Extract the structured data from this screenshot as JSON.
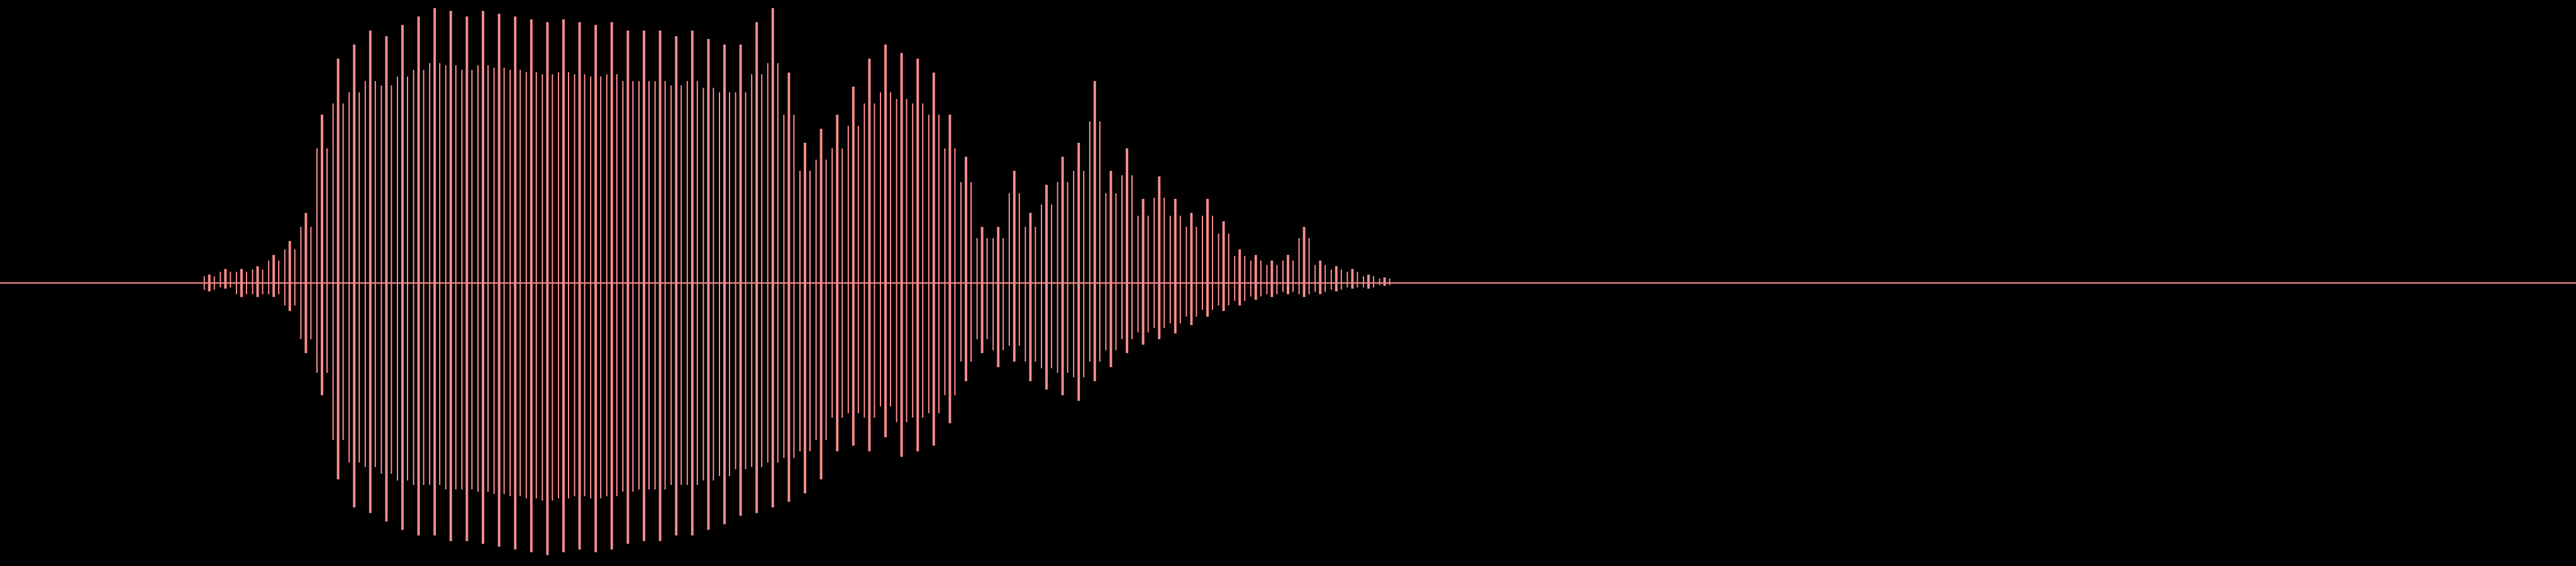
{
  "chart_data": {
    "type": "waveform",
    "x": [
      13,
      14,
      15,
      16,
      17,
      18,
      19,
      20,
      21,
      22,
      23,
      24,
      25,
      26,
      27,
      28,
      29,
      30,
      31,
      32,
      33,
      34,
      35,
      36,
      37,
      38,
      39,
      40,
      41,
      42,
      43,
      44,
      45,
      46,
      47,
      48,
      49,
      50,
      51,
      52,
      53,
      54,
      55,
      56,
      57,
      58,
      59,
      60,
      61,
      62,
      63,
      64,
      65,
      66,
      67,
      68,
      69,
      70,
      71,
      72,
      73,
      74,
      75,
      76,
      77,
      78,
      79,
      80,
      81,
      82,
      83,
      84,
      85,
      86
    ],
    "xlim": [
      0,
      160
    ],
    "ylim": [
      -1,
      1
    ],
    "series": [
      {
        "color": "#f68a8a",
        "values": [
          0.03,
          0.05,
          0.05,
          0.06,
          0.1,
          0.15,
          0.25,
          0.6,
          0.8,
          0.85,
          0.9,
          0.88,
          0.92,
          0.95,
          0.98,
          0.97,
          0.95,
          0.97,
          0.96,
          0.95,
          0.94,
          0.93,
          0.94,
          0.93,
          0.92,
          0.93,
          0.9,
          0.9,
          0.9,
          0.88,
          0.9,
          0.87,
          0.85,
          0.85,
          0.93,
          0.98,
          0.75,
          0.5,
          0.55,
          0.6,
          0.7,
          0.8,
          0.85,
          0.82,
          0.8,
          0.75,
          0.6,
          0.45,
          0.2,
          0.2,
          0.4,
          0.25,
          0.35,
          0.45,
          0.5,
          0.72,
          0.4,
          0.48,
          0.3,
          0.38,
          0.3,
          0.25,
          0.3,
          0.22,
          0.12,
          0.1,
          0.08,
          0.1,
          0.2,
          0.08,
          0.06,
          0.05,
          0.03,
          0.02
        ]
      },
      {
        "color": "#f68a8a",
        "values": [
          -0.03,
          -0.02,
          -0.05,
          -0.05,
          -0.05,
          -0.1,
          -0.25,
          -0.4,
          -0.7,
          -0.8,
          -0.82,
          -0.85,
          -0.88,
          -0.9,
          -0.9,
          -0.92,
          -0.92,
          -0.93,
          -0.94,
          -0.95,
          -0.96,
          -0.97,
          -0.96,
          -0.95,
          -0.96,
          -0.95,
          -0.93,
          -0.92,
          -0.92,
          -0.9,
          -0.9,
          -0.88,
          -0.86,
          -0.83,
          -0.82,
          -0.8,
          -0.78,
          -0.75,
          -0.7,
          -0.6,
          -0.58,
          -0.6,
          -0.55,
          -0.62,
          -0.6,
          -0.58,
          -0.5,
          -0.35,
          -0.25,
          -0.3,
          -0.28,
          -0.35,
          -0.38,
          -0.4,
          -0.42,
          -0.35,
          -0.3,
          -0.25,
          -0.22,
          -0.2,
          -0.18,
          -0.15,
          -0.12,
          -0.1,
          -0.08,
          -0.06,
          -0.05,
          -0.04,
          -0.05,
          -0.04,
          -0.03,
          -0.02,
          -0.02,
          -0.01
        ]
      }
    ]
  }
}
